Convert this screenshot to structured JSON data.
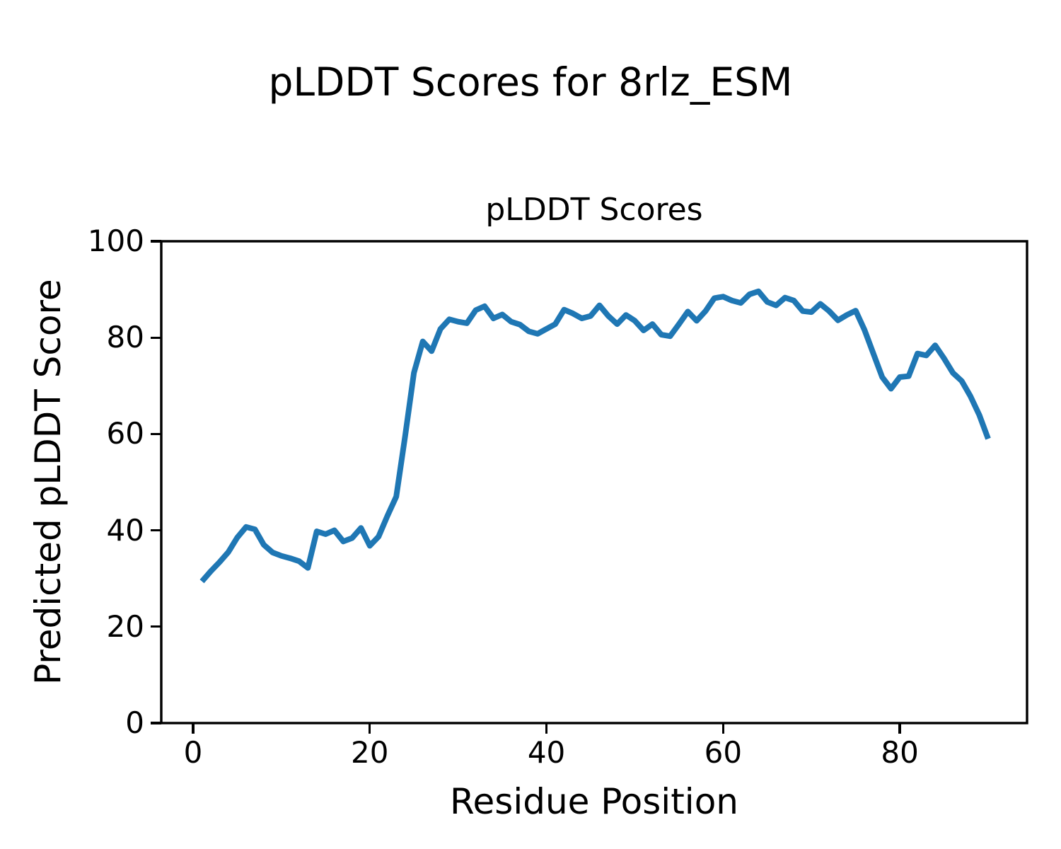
{
  "figure": {
    "suptitle": "pLDDT Scores for 8rlz_ESM"
  },
  "chart_data": {
    "type": "line",
    "title": "pLDDT Scores",
    "xlabel": "Residue Position",
    "ylabel": "Predicted pLDDT Score",
    "xlim": [
      -3.6,
      94.4
    ],
    "ylim": [
      0,
      100
    ],
    "xticks": [
      0,
      20,
      40,
      60,
      80
    ],
    "yticks": [
      0,
      20,
      40,
      60,
      80,
      100
    ],
    "grid": false,
    "legend": "none",
    "series": [
      {
        "name": "pLDDT",
        "color": "#1f77b4",
        "line_width": 8,
        "x": [
          1,
          2,
          3,
          4,
          5,
          6,
          7,
          8,
          9,
          10,
          11,
          12,
          13,
          14,
          15,
          16,
          17,
          18,
          19,
          20,
          21,
          22,
          23,
          24,
          25,
          26,
          27,
          28,
          29,
          30,
          31,
          32,
          33,
          34,
          35,
          36,
          37,
          38,
          39,
          40,
          41,
          42,
          43,
          44,
          45,
          46,
          47,
          48,
          49,
          50,
          51,
          52,
          53,
          54,
          55,
          56,
          57,
          58,
          59,
          60,
          61,
          62,
          63,
          64,
          65,
          66,
          67,
          68,
          69,
          70,
          71,
          72,
          73,
          74,
          75,
          76,
          77,
          78,
          79,
          80,
          81,
          82,
          83,
          84,
          85,
          86,
          87,
          88,
          89,
          90
        ],
        "values": [
          29.4,
          31.5,
          33.4,
          35.5,
          38.5,
          40.7,
          40.2,
          37.0,
          35.4,
          34.7,
          34.2,
          33.6,
          32.2,
          39.8,
          39.2,
          40.0,
          37.7,
          38.4,
          40.5,
          36.8,
          38.7,
          43.0,
          47.0,
          59.5,
          72.7,
          79.2,
          77.2,
          81.8,
          83.8,
          83.3,
          83.0,
          85.7,
          86.5,
          84.0,
          84.8,
          83.3,
          82.7,
          81.3,
          80.8,
          81.8,
          82.8,
          85.8,
          85.0,
          84.0,
          84.5,
          86.7,
          84.5,
          82.8,
          84.7,
          83.5,
          81.5,
          82.8,
          80.6,
          80.3,
          82.8,
          85.4,
          83.5,
          85.5,
          88.2,
          88.5,
          87.7,
          87.2,
          89.0,
          89.6,
          87.4,
          86.7,
          88.3,
          87.7,
          85.5,
          85.3,
          87.0,
          85.5,
          83.6,
          84.7,
          85.6,
          81.6,
          76.7,
          71.8,
          69.4,
          71.8,
          72.0,
          76.7,
          76.3,
          78.4,
          75.7,
          72.7,
          71.0,
          67.8,
          63.9,
          59.0
        ]
      }
    ]
  }
}
